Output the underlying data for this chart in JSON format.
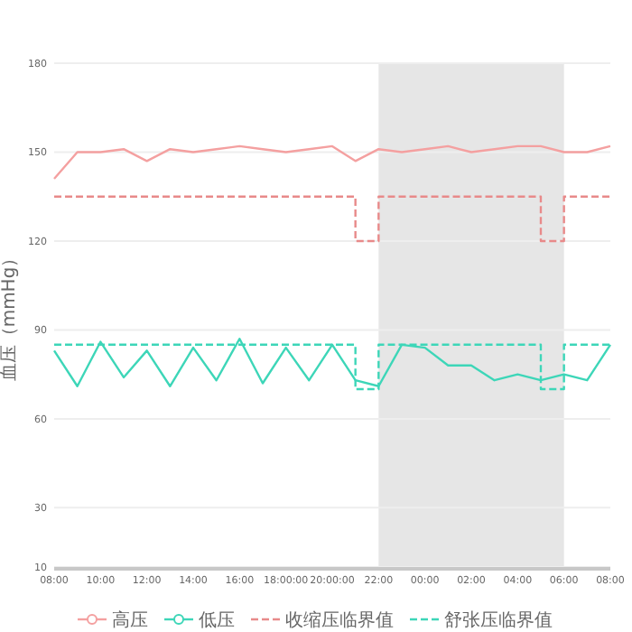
{
  "chart_data": {
    "type": "line",
    "ylabel": "血压（mmHg）",
    "categories": [
      "08:00",
      null,
      "10:00",
      null,
      "12:00",
      null,
      "14:00",
      null,
      "16:00",
      null,
      "18:00:00",
      null,
      "20:00:00",
      null,
      "22:00",
      null,
      "00:00",
      null,
      "02:00",
      null,
      "04:00",
      null,
      "06:00",
      null,
      "08:00"
    ],
    "series": [
      {
        "name": "高压",
        "color": "#f4a0a0",
        "values": [
          141,
          150,
          150,
          151,
          147,
          151,
          150,
          151,
          152,
          151,
          150,
          151,
          152,
          147,
          151,
          150,
          151,
          152,
          150,
          151,
          152,
          152,
          150,
          150,
          152
        ]
      },
      {
        "name": "低压",
        "color": "#3dd6b8",
        "values": [
          83,
          71,
          86,
          74,
          83,
          71,
          84,
          73,
          87,
          72,
          84,
          73,
          85,
          73,
          71,
          85,
          84,
          78,
          78,
          73,
          75,
          73,
          75,
          73,
          85
        ]
      },
      {
        "name": "收缩压临界值",
        "type": "step",
        "line_style": "dashed",
        "color": "#e88a8a",
        "values": [
          135,
          135,
          135,
          135,
          135,
          135,
          135,
          135,
          135,
          135,
          135,
          135,
          135,
          120,
          135,
          135,
          135,
          135,
          135,
          135,
          135,
          120,
          135,
          135,
          135
        ]
      },
      {
        "name": "舒张压临界值",
        "type": "step",
        "line_style": "dashed",
        "color": "#3dd6b8",
        "values": [
          85,
          85,
          85,
          85,
          85,
          85,
          85,
          85,
          85,
          85,
          85,
          85,
          85,
          70,
          85,
          85,
          85,
          85,
          85,
          85,
          85,
          70,
          85,
          85,
          85
        ]
      }
    ],
    "ylim": [
      10,
      180
    ],
    "yticks": [
      10,
      30,
      60,
      90,
      120,
      150,
      180
    ],
    "grid": "y",
    "legend": "bottom",
    "marker": "none",
    "bands": [
      {
        "axis": "x",
        "from": "22:00",
        "to": "06:00",
        "color": "#e6e6e6"
      }
    ]
  }
}
